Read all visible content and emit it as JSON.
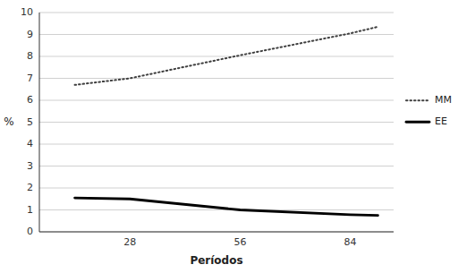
{
  "chart_data": {
    "type": "line",
    "x": [
      14,
      28,
      56,
      84,
      91
    ],
    "series": [
      {
        "name": "MM",
        "color": "#3f3f3f",
        "line_style": "dotted",
        "values": [
          6.7,
          7.0,
          8.05,
          9.05,
          9.35
        ]
      },
      {
        "name": "EE",
        "color": "#000000",
        "line_style": "solid",
        "values": [
          1.55,
          1.5,
          1.0,
          0.78,
          0.75
        ]
      }
    ],
    "xlim": [
      5,
      95
    ],
    "xticks": [
      28,
      56,
      84
    ],
    "ylim": [
      0,
      10
    ],
    "yticks": [
      0,
      1,
      2,
      3,
      4,
      5,
      6,
      7,
      8,
      9,
      10
    ],
    "xlabel": "Períodos",
    "ylabel": "%",
    "grid": "y",
    "legend": "right"
  }
}
